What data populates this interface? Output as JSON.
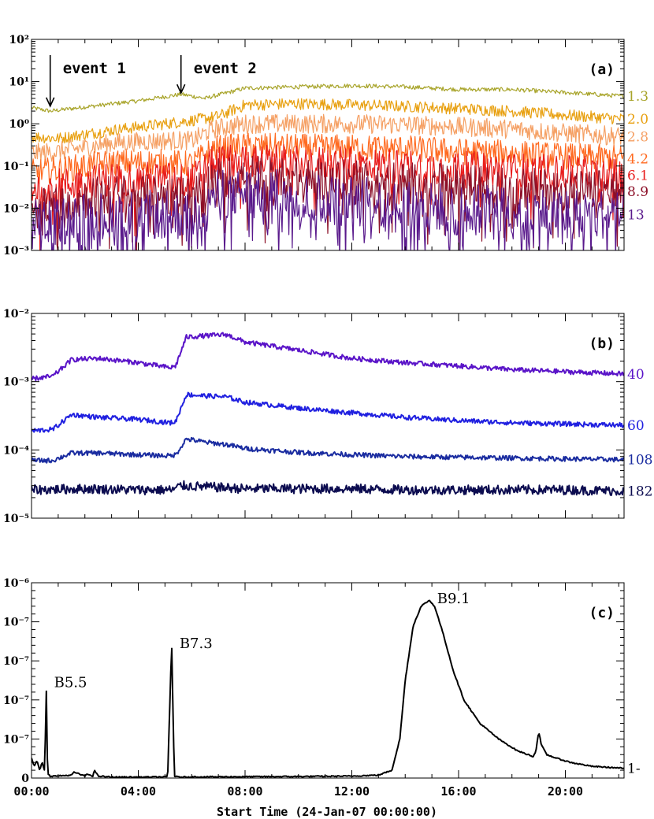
{
  "x_label": "Start Time (24-Jan-07 00:00:00)",
  "x_ticks": [
    "00:00",
    "04:00",
    "08:00",
    "12:00",
    "16:00",
    "20:00"
  ],
  "chart_data": [
    {
      "type": "line",
      "panel_label": "(a)",
      "y_scale": "log",
      "ylim": [
        0.001,
        100
      ],
      "y_ticks": [
        "10²",
        "10¹",
        "10⁰",
        "10⁻¹",
        "10⁻²",
        "10⁻³"
      ],
      "xlim_hours": [
        0,
        22.2
      ],
      "annotations": [
        {
          "text": "event 1",
          "x_hours": 0.7,
          "y": 2.2
        },
        {
          "text": "event 2",
          "x_hours": 5.6,
          "y": 4.5
        }
      ],
      "series": [
        {
          "name": "1.3",
          "color": "#a8a42a",
          "x": [
            0,
            0.7,
            2,
            4,
            5.6,
            6.5,
            8,
            10,
            12,
            14,
            16,
            18,
            20,
            22.2
          ],
          "values": [
            2.4,
            2.0,
            2.5,
            3.5,
            5.0,
            4.0,
            7.0,
            7.5,
            8.0,
            7.5,
            6.5,
            6.5,
            5.5,
            4.5
          ]
        },
        {
          "name": "2.0",
          "color": "#e8a010",
          "x": [
            0,
            1,
            3,
            5,
            6,
            7,
            8,
            10,
            12,
            14,
            16,
            18,
            20,
            22.2
          ],
          "values": [
            0.5,
            0.45,
            0.7,
            1.0,
            1.2,
            1.5,
            2.8,
            3.0,
            2.8,
            2.6,
            2.3,
            2.0,
            1.6,
            1.3
          ]
        },
        {
          "name": "2.8",
          "color": "#f5a064",
          "x": [
            0,
            1,
            3,
            5,
            6,
            6.8,
            8,
            10,
            12,
            14,
            16,
            18,
            20,
            22.2
          ],
          "values": [
            0.2,
            0.22,
            0.35,
            0.4,
            0.4,
            0.75,
            1.0,
            1.0,
            1.0,
            0.95,
            0.85,
            0.75,
            0.6,
            0.5
          ]
        },
        {
          "name": "4.2",
          "color": "#ff6a20",
          "x": [
            0,
            1,
            3,
            5,
            6,
            6.8,
            8,
            10,
            12,
            14,
            16,
            18,
            20,
            22.2
          ],
          "values": [
            0.07,
            0.08,
            0.12,
            0.12,
            0.11,
            0.25,
            0.3,
            0.28,
            0.27,
            0.26,
            0.22,
            0.2,
            0.17,
            0.15
          ]
        },
        {
          "name": "6.1",
          "color": "#e81c1c",
          "x": [
            0,
            1,
            3,
            5,
            6,
            6.8,
            8,
            10,
            12,
            14,
            16,
            18,
            20,
            22.2
          ],
          "values": [
            0.03,
            0.035,
            0.05,
            0.05,
            0.045,
            0.12,
            0.14,
            0.12,
            0.11,
            0.1,
            0.09,
            0.08,
            0.07,
            0.06
          ]
        },
        {
          "name": "8.9",
          "color": "#8c1028",
          "x": [
            0,
            1,
            3,
            5,
            6,
            6.8,
            8,
            10,
            12,
            14,
            16,
            18,
            20,
            22.2
          ],
          "values": [
            0.012,
            0.015,
            0.02,
            0.02,
            0.018,
            0.05,
            0.06,
            0.05,
            0.045,
            0.04,
            0.035,
            0.03,
            0.028,
            0.025
          ]
        },
        {
          "name": "13",
          "color": "#5a1a8c",
          "x": [
            0,
            1,
            3,
            5,
            6,
            6.8,
            8,
            10,
            12,
            14,
            16,
            18,
            20,
            22.2
          ],
          "values": [
            0.004,
            0.005,
            0.007,
            0.007,
            0.006,
            0.02,
            0.025,
            0.02,
            0.015,
            0.012,
            0.01,
            0.009,
            0.008,
            0.007
          ]
        }
      ]
    },
    {
      "type": "line",
      "panel_label": "(b)",
      "y_scale": "log",
      "ylim": [
        1e-05,
        0.01
      ],
      "y_ticks": [
        "10⁻²",
        "10⁻³",
        "10⁻⁴",
        "10⁻⁵"
      ],
      "xlim_hours": [
        0,
        22.2
      ],
      "series": [
        {
          "name": "40",
          "color": "#5a14c8",
          "x": [
            0,
            0.8,
            1.5,
            2.5,
            4,
            5.2,
            5.4,
            5.8,
            6.5,
            7.3,
            8,
            10,
            12,
            14,
            16,
            18,
            20,
            22.2
          ],
          "values": [
            0.0011,
            0.0012,
            0.0021,
            0.0022,
            0.0019,
            0.0016,
            0.0017,
            0.0045,
            0.0047,
            0.0049,
            0.0038,
            0.0029,
            0.0022,
            0.0019,
            0.0017,
            0.0015,
            0.0014,
            0.0013
          ]
        },
        {
          "name": "60",
          "color": "#2020e0",
          "x": [
            0,
            0.8,
            1.5,
            2.5,
            4,
            5.2,
            5.4,
            5.8,
            6.5,
            7.3,
            8,
            10,
            12,
            14,
            16,
            18,
            20,
            22.2
          ],
          "values": [
            0.00019,
            0.0002,
            0.00033,
            0.0003,
            0.00028,
            0.00025,
            0.00026,
            0.00065,
            0.00062,
            0.0006,
            0.0005,
            0.00041,
            0.00035,
            0.0003,
            0.00027,
            0.00025,
            0.00024,
            0.00023
          ]
        },
        {
          "name": "108",
          "color": "#1a2ca0",
          "x": [
            0,
            0.8,
            1.5,
            2.5,
            4,
            5.2,
            5.4,
            5.8,
            6.5,
            7.3,
            8,
            10,
            12,
            14,
            16,
            18,
            20,
            22.2
          ],
          "values": [
            7e-05,
            7e-05,
            9e-05,
            9e-05,
            8.5e-05,
            8.2e-05,
            8.5e-05,
            0.000145,
            0.00013,
            0.00012,
            0.000105,
            9.2e-05,
            8.5e-05,
            8e-05,
            7.8e-05,
            7.6e-05,
            7.4e-05,
            7.2e-05
          ]
        },
        {
          "name": "182",
          "color": "#0c0c50",
          "x": [
            0,
            2,
            4,
            5.3,
            5.6,
            8,
            10,
            12,
            14,
            16,
            18,
            20,
            22.2
          ],
          "values": [
            2.6e-05,
            2.7e-05,
            2.6e-05,
            2.6e-05,
            3e-05,
            2.7e-05,
            2.7e-05,
            2.7e-05,
            2.6e-05,
            2.6e-05,
            2.6e-05,
            2.6e-05,
            2.5e-05
          ]
        }
      ]
    },
    {
      "type": "line",
      "panel_label": "(c)",
      "y_scale": "linear",
      "ylim": [
        0,
        1
      ],
      "y_ticks": [
        "10⁻⁶",
        "10⁻⁷",
        "10⁻⁷",
        "10⁻⁷",
        "10⁻⁷",
        "0"
      ],
      "xlim_hours": [
        0,
        22.2
      ],
      "annotations": [
        {
          "text": "B5.5",
          "x_hours": 0.55,
          "y": 0.49
        },
        {
          "text": "B7.3",
          "x_hours": 5.25,
          "y": 0.69
        },
        {
          "text": "B9.1",
          "x_hours": 14.9,
          "y": 0.92
        }
      ],
      "series": [
        {
          "name": "1-",
          "color": "#000000",
          "x": [
            0,
            0.1,
            0.2,
            0.3,
            0.4,
            0.5,
            0.55,
            0.6,
            0.65,
            0.7,
            0.9,
            1.5,
            1.6,
            2.0,
            2.1,
            2.3,
            2.35,
            2.5,
            3,
            4,
            5.1,
            5.25,
            5.35,
            5.5,
            6,
            8,
            10,
            12,
            13,
            13.5,
            13.8,
            14.0,
            14.3,
            14.6,
            14.9,
            15.1,
            15.4,
            15.8,
            16.2,
            16.8,
            17.5,
            18.2,
            18.8,
            18.9,
            19.0,
            19.1,
            19.3,
            19.7,
            20.2,
            21,
            22.2
          ],
          "values": [
            0.1,
            0.06,
            0.09,
            0.04,
            0.08,
            0.03,
            0.49,
            0.02,
            0.02,
            0.01,
            0.01,
            0.015,
            0.03,
            0.01,
            0.02,
            0.01,
            0.04,
            0.01,
            0.005,
            0.005,
            0.006,
            0.69,
            0.01,
            0.005,
            0.006,
            0.007,
            0.008,
            0.01,
            0.015,
            0.04,
            0.2,
            0.5,
            0.78,
            0.88,
            0.91,
            0.88,
            0.75,
            0.55,
            0.4,
            0.28,
            0.2,
            0.14,
            0.11,
            0.14,
            0.24,
            0.17,
            0.12,
            0.1,
            0.08,
            0.06,
            0.05
          ]
        }
      ]
    }
  ]
}
